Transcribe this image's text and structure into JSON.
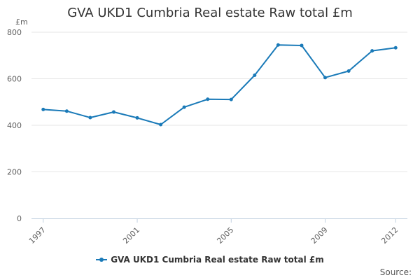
{
  "chart_data": {
    "type": "line",
    "title": "GVA UKD1 Cumbria Real estate Raw total £m",
    "ylabel": "£m",
    "xlabel": "",
    "ylim": [
      0,
      800
    ],
    "yticks": [
      0,
      200,
      400,
      600,
      800
    ],
    "xticks": [
      1997,
      2001,
      2005,
      2009,
      2012
    ],
    "grid": true,
    "legend_position": "bottom",
    "series": [
      {
        "name": "GVA UKD1 Cumbria Real estate Raw total £m",
        "color": "#1a7ab8",
        "x": [
          1997,
          1998,
          1999,
          2000,
          2001,
          2002,
          2003,
          2004,
          2005,
          2006,
          2007,
          2008,
          2009,
          2010,
          2011,
          2012
        ],
        "values": [
          468,
          461,
          433,
          457,
          432,
          403,
          478,
          512,
          511,
          615,
          745,
          743,
          605,
          633,
          720,
          733
        ]
      }
    ]
  },
  "footer": {
    "source_label": "Source:"
  }
}
